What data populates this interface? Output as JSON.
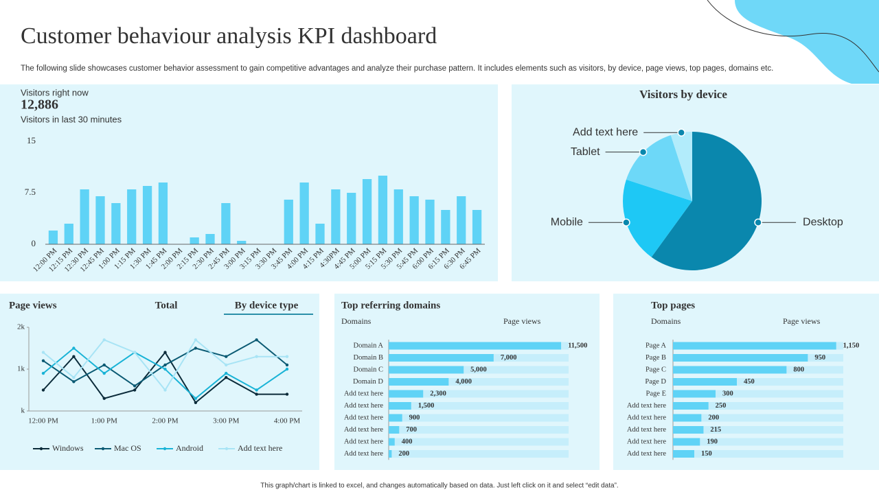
{
  "title": "Customer behaviour analysis KPI dashboard",
  "description": "The following slide showcases customer behavior assessment to gain competitive advantages and analyze their purchase pattern. It includes elements such as visitors, by device, page views, top pages, domains etc.",
  "footer": "This graph/chart is linked to excel, and changes automatically based on data. Just left click on it and select “edit data”.",
  "visitors": {
    "label": "Visitors right  now",
    "count": "12,886",
    "caption": "Visitors in last 30 minutes"
  },
  "chart_data": [
    {
      "type": "bar",
      "color": "#5fd3f6",
      "categories": [
        "12:00 PM",
        "12:15 PM",
        "12:30 PM",
        "12:45 PM",
        "1:00 PM",
        "1:15 PM",
        "1:30 PM",
        "1:45 PM",
        "2:00 PM",
        "2:15 PM",
        "2:30 PM",
        "2:45 PM",
        "3:00 PM",
        "3:15 PM",
        "3:30 PM",
        "3:45 PM",
        "4:00 PM",
        "4:15 PM",
        "4:30PM",
        "4:45 PM",
        "5:00 PM",
        "5:15 PM",
        "5:30 PM",
        "5:45 PM",
        "6:00 PM",
        "6:15 PM",
        "6:30 PM",
        "6:45 PM"
      ],
      "values": [
        2,
        3,
        8,
        7,
        6,
        8,
        8.5,
        9,
        0,
        1,
        1.5,
        6,
        0.5,
        0,
        0,
        6.5,
        9,
        3,
        8,
        7.5,
        9.5,
        10,
        8,
        7,
        6.5,
        5,
        7,
        5
      ],
      "ylim": [
        0,
        15
      ],
      "yticks": [
        0,
        7.5,
        15
      ],
      "grid": false
    },
    {
      "type": "pie",
      "title": "Visitors by device",
      "categories": [
        "Desktop",
        "Mobile",
        "Tablet",
        "Add text here"
      ],
      "values": [
        60,
        20,
        15,
        5
      ],
      "colors": [
        "#0a87ad",
        "#1ec8f5",
        "#6dd8f8",
        "#b2ecfb"
      ]
    },
    {
      "type": "line",
      "title": "Page views",
      "tabs": [
        "Total",
        "By device type"
      ],
      "categories": [
        "12:00 PM",
        null,
        "1:00 PM",
        null,
        "2:00 PM",
        null,
        "3:00 PM",
        null,
        "4:00 PM"
      ],
      "series": [
        {
          "name": "Windows",
          "color": "#0b2b3a",
          "values": [
            500,
            1300,
            300,
            500,
            1400,
            200,
            800,
            400,
            400
          ]
        },
        {
          "name": "Mac OS",
          "color": "#0b5a73",
          "values": [
            1200,
            700,
            1100,
            600,
            1100,
            1500,
            1300,
            1700,
            1100
          ]
        },
        {
          "name": "Android",
          "color": "#19b3d6",
          "values": [
            900,
            1500,
            900,
            1400,
            1000,
            300,
            900,
            500,
            1000
          ]
        },
        {
          "name": "Add text here",
          "color": "#a8e4f5",
          "values": [
            1400,
            800,
            1700,
            1400,
            500,
            1700,
            1100,
            1300,
            1300
          ]
        }
      ],
      "ylim": [
        0,
        2000
      ],
      "yticks": [
        {
          "value": 0,
          "label": "k"
        },
        {
          "value": 1000,
          "label": "1k"
        },
        {
          "value": 2000,
          "label": "2k"
        }
      ],
      "legend": "bottom"
    },
    {
      "type": "bar",
      "horizontal": true,
      "title": "Top referring domains",
      "column_labels": [
        "Domains",
        "Page views"
      ],
      "color": "#5fd3f6",
      "categories": [
        "Domain A",
        "Domain B",
        "Domain C",
        "Domain D",
        "Add text here",
        "Add text here",
        "Add text here",
        "Add text here",
        "Add text here",
        "Add text here"
      ],
      "values": [
        11500,
        7000,
        5000,
        4000,
        2300,
        1500,
        900,
        700,
        400,
        200
      ],
      "value_labels": [
        "11,500",
        "7,000",
        "5,000",
        "4,000",
        "2,300",
        "1,500",
        "900",
        "700",
        "400",
        "200"
      ],
      "xlim": [
        0,
        12000
      ]
    },
    {
      "type": "bar",
      "horizontal": true,
      "title": "Top pages",
      "column_labels": [
        "Domains",
        "Page views"
      ],
      "color": "#5fd3f6",
      "categories": [
        "Page A",
        "Page B",
        "Page C",
        "Page D",
        "Page E",
        "Add text here",
        "Add text here",
        "Add text here",
        "Add text here",
        "Add text here"
      ],
      "values": [
        1150,
        950,
        800,
        450,
        300,
        250,
        200,
        215,
        190,
        150
      ],
      "value_labels": [
        "1,150",
        "950",
        "800",
        "450",
        "300",
        "250",
        "200",
        "215",
        "190",
        "150"
      ],
      "xlim": [
        0,
        1200
      ]
    }
  ]
}
